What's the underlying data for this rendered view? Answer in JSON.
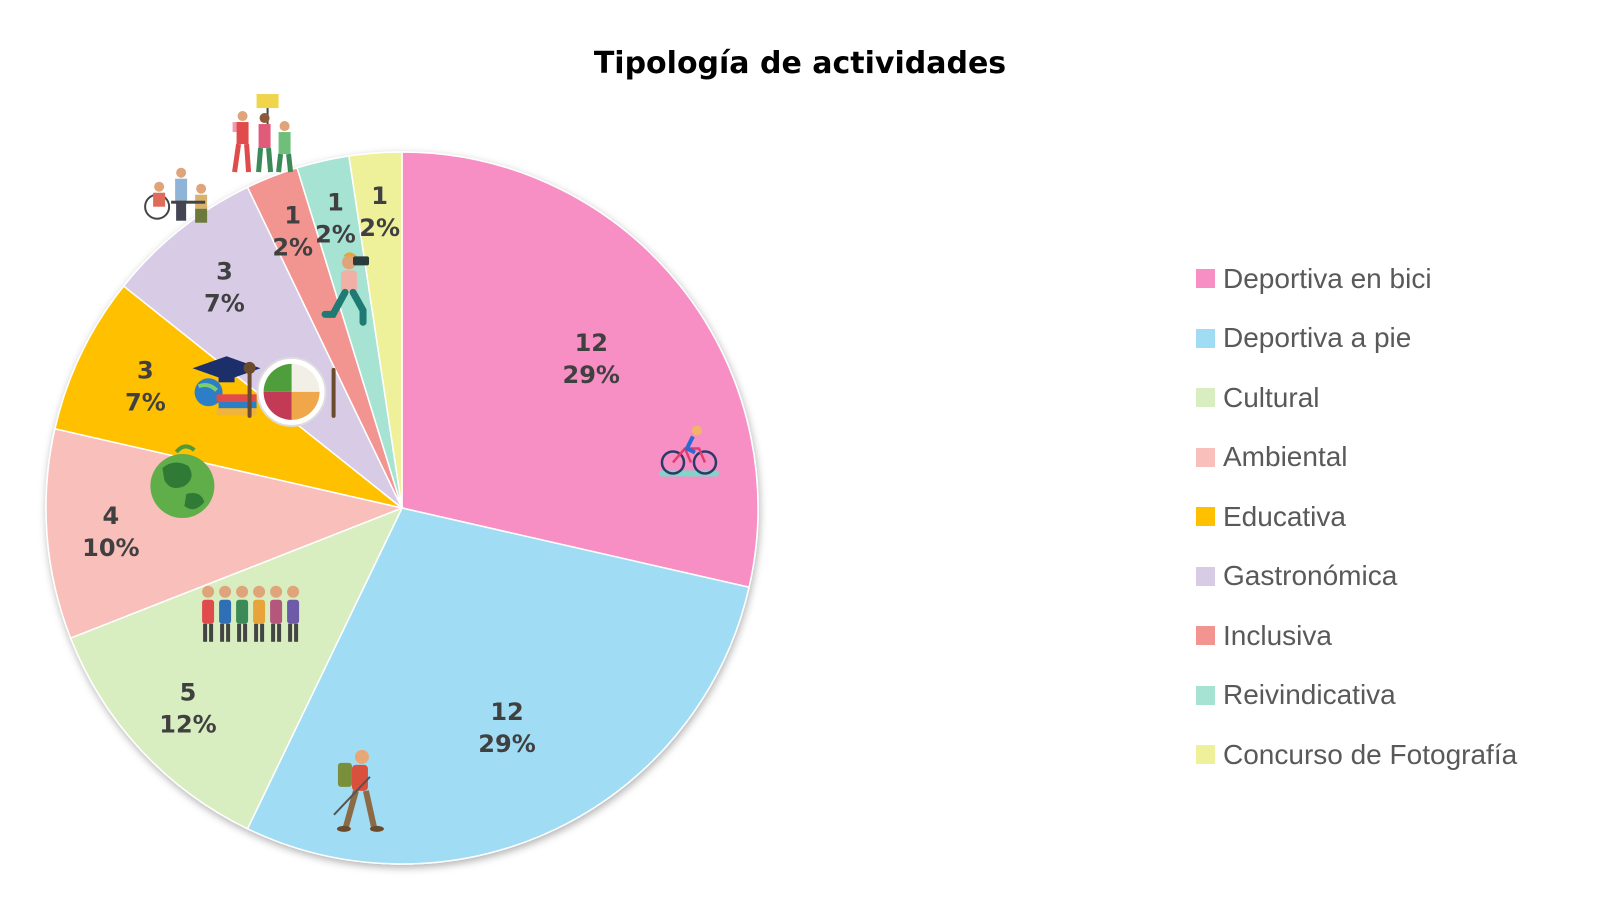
{
  "chart_data": {
    "type": "pie",
    "title": "Tipología de actividades",
    "start_angle_deg": 0,
    "direction": "clockwise",
    "legend_position": "right",
    "slices": [
      {
        "label": "Deportiva en bici",
        "value": 12,
        "percent": "29%",
        "color": "#F78FC4",
        "icon": "cyclist-icon"
      },
      {
        "label": "Deportiva a pie",
        "value": 12,
        "percent": "29%",
        "color": "#A0DDF5",
        "icon": "hiker-icon"
      },
      {
        "label": "Cultural",
        "value": 5,
        "percent": "12%",
        "color": "#D8EDC0",
        "icon": "people-group-icon"
      },
      {
        "label": "Ambiental",
        "value": 4,
        "percent": "10%",
        "color": "#F9BFBB",
        "icon": "earth-icon"
      },
      {
        "label": "Educativa",
        "value": 3,
        "percent": "7%",
        "color": "#FFC000",
        "icon": "graduation-books-icon"
      },
      {
        "label": "Gastronómica",
        "value": 3,
        "percent": "7%",
        "color": "#D7CBE6",
        "icon": "food-plate-icon"
      },
      {
        "label": "Inclusiva",
        "value": 1,
        "percent": "2%",
        "color": "#F29490",
        "icon": "inclusion-group-icon"
      },
      {
        "label": "Reivindicativa",
        "value": 1,
        "percent": "2%",
        "color": "#A6E3D2",
        "icon": "protest-icon"
      },
      {
        "label": "Concurso de Fotografía",
        "value": 1,
        "percent": "2%",
        "color": "#EEF09A",
        "icon": "photographer-icon"
      }
    ]
  }
}
